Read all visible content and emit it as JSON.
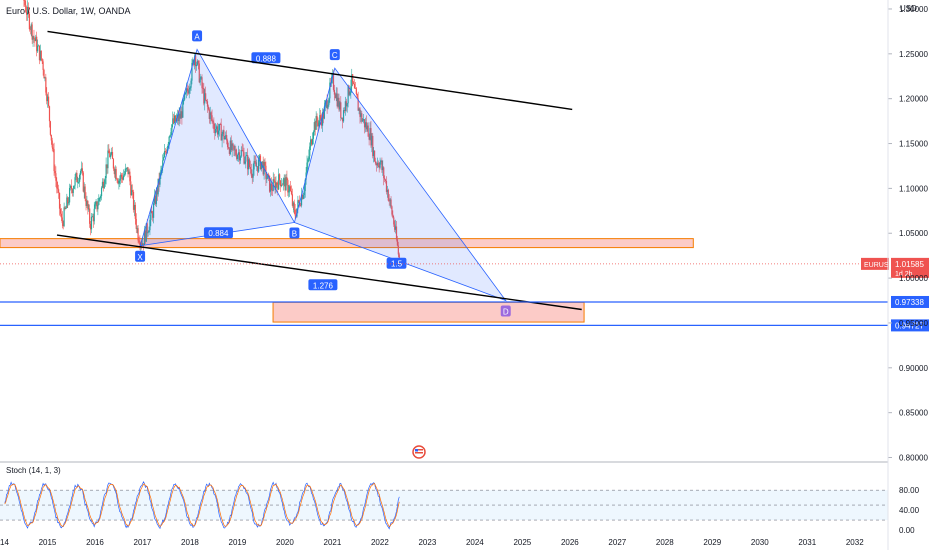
{
  "header": {
    "title": "Euro / U.S. Dollar, 1W, OANDA"
  },
  "chart_data": {
    "type": "candlestick",
    "symbol": "EURUSD",
    "currency_label": "USD",
    "price_axis": {
      "ylim": [
        0.795,
        1.31
      ],
      "ticks": [
        "1.30000",
        "1.25000",
        "1.20000",
        "1.15000",
        "1.10000",
        "1.05000",
        "1.00000",
        "0.95000",
        "0.90000",
        "0.85000",
        "0.80000"
      ]
    },
    "time_axis": {
      "xlim": [
        2014.0,
        2032.7
      ],
      "ticks": [
        "2014",
        "2015",
        "2016",
        "2017",
        "2018",
        "2019",
        "2020",
        "2021",
        "2022",
        "2023",
        "2024",
        "2025",
        "2026",
        "2027",
        "2028",
        "2029",
        "2030",
        "2031",
        "2032"
      ]
    },
    "price_path": [
      [
        2014.1,
        1.37
      ],
      [
        2014.4,
        1.33
      ],
      [
        2014.7,
        1.27
      ],
      [
        2014.9,
        1.24
      ],
      [
        2015.0,
        1.2
      ],
      [
        2015.15,
        1.12
      ],
      [
        2015.3,
        1.06
      ],
      [
        2015.5,
        1.1
      ],
      [
        2015.7,
        1.12
      ],
      [
        2015.9,
        1.06
      ],
      [
        2016.1,
        1.09
      ],
      [
        2016.3,
        1.14
      ],
      [
        2016.5,
        1.11
      ],
      [
        2016.7,
        1.12
      ],
      [
        2016.9,
        1.05
      ],
      [
        2017.0,
        1.04
      ],
      [
        2017.2,
        1.07
      ],
      [
        2017.4,
        1.12
      ],
      [
        2017.6,
        1.17
      ],
      [
        2017.8,
        1.18
      ],
      [
        2018.0,
        1.22
      ],
      [
        2018.1,
        1.25
      ],
      [
        2018.3,
        1.2
      ],
      [
        2018.5,
        1.17
      ],
      [
        2018.7,
        1.16
      ],
      [
        2018.9,
        1.14
      ],
      [
        2019.1,
        1.14
      ],
      [
        2019.3,
        1.12
      ],
      [
        2019.5,
        1.13
      ],
      [
        2019.7,
        1.1
      ],
      [
        2019.9,
        1.11
      ],
      [
        2020.1,
        1.1
      ],
      [
        2020.2,
        1.07
      ],
      [
        2020.4,
        1.1
      ],
      [
        2020.6,
        1.17
      ],
      [
        2020.8,
        1.18
      ],
      [
        2021.0,
        1.22
      ],
      [
        2021.2,
        1.18
      ],
      [
        2021.4,
        1.22
      ],
      [
        2021.6,
        1.18
      ],
      [
        2021.8,
        1.16
      ],
      [
        2021.9,
        1.13
      ],
      [
        2022.0,
        1.13
      ],
      [
        2022.15,
        1.1
      ],
      [
        2022.3,
        1.06
      ],
      [
        2022.42,
        1.0158
      ]
    ],
    "last_price": {
      "symbol": "EURUSD",
      "value": 1.01585,
      "label": "1.01585",
      "countdown": "1d 2h"
    },
    "harmonic_pattern": {
      "points": [
        {
          "label": "X",
          "x": 2016.95,
          "y": 1.036
        },
        {
          "label": "A",
          "x": 2018.15,
          "y": 1.255
        },
        {
          "label": "B",
          "x": 2020.2,
          "y": 1.062
        },
        {
          "label": "C",
          "x": 2021.05,
          "y": 1.234
        },
        {
          "label": "D",
          "x": 2024.65,
          "y": 0.975
        }
      ],
      "ratios": [
        {
          "label": "0.884",
          "x": 2018.6,
          "y": 1.05
        },
        {
          "label": "0.888",
          "x": 2019.6,
          "y": 1.245
        },
        {
          "label": "1.5",
          "x": 2022.35,
          "y": 1.016
        },
        {
          "label": "1.276",
          "x": 2020.8,
          "y": 0.992
        }
      ]
    },
    "trendlines": [
      {
        "from": [
          2015.0,
          1.275
        ],
        "to": [
          2026.05,
          1.188
        ]
      },
      {
        "from": [
          2015.2,
          1.048
        ],
        "to": [
          2026.25,
          0.965
        ]
      }
    ],
    "zones": [
      {
        "x0": 2014.0,
        "x1": 2028.6,
        "y0": 1.034,
        "y1": 1.044
      },
      {
        "x0": 2019.75,
        "x1": 2026.3,
        "y0": 0.951,
        "y1": 0.973
      }
    ],
    "horizontal_levels": [
      {
        "value": 0.97338,
        "label": "0.97338"
      },
      {
        "value": 0.94727,
        "label": "0.94727"
      }
    ]
  },
  "oscillator": {
    "title": "Stoch (14, 1, 3)",
    "ticks": [
      "80.00",
      "40.00",
      "0.00"
    ],
    "upper_band": 80,
    "lower_band": 20
  }
}
